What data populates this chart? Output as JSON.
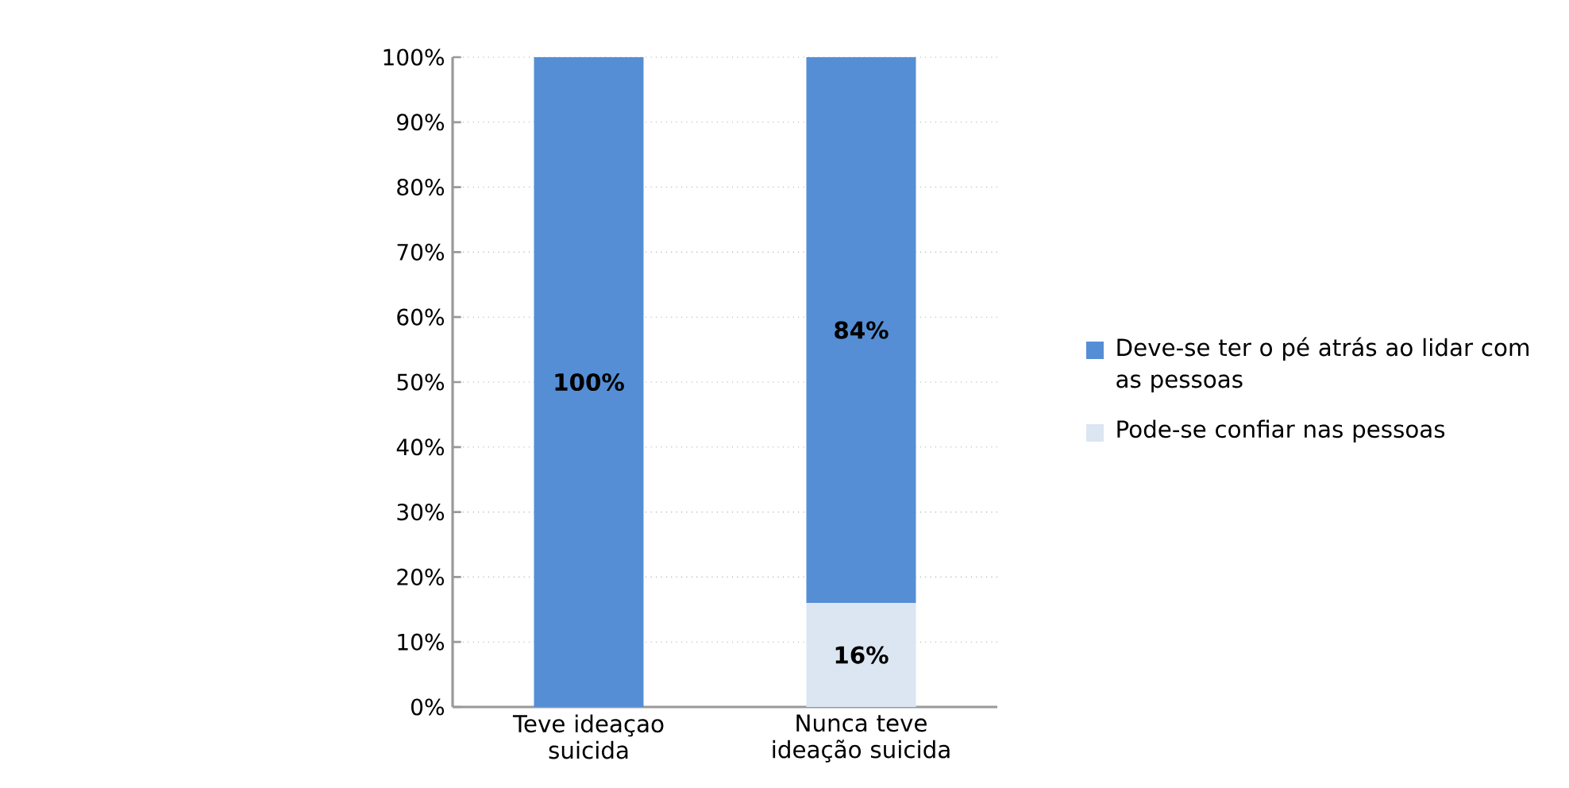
{
  "chart_data": {
    "type": "bar",
    "stacked": true,
    "categories": [
      "Teve ideaçao suicida",
      "Nunca teve ideação suicida"
    ],
    "series": [
      {
        "name": "Pode-se confiar nas pessoas",
        "color": "#dce6f2",
        "values": [
          0,
          16
        ],
        "value_labels": [
          null,
          "16%"
        ]
      },
      {
        "name": "Deve-se ter o pé atrás ao lidar com as pessoas",
        "color": "#558ed5",
        "values": [
          100,
          84
        ],
        "value_labels": [
          "100%",
          "84%"
        ]
      }
    ],
    "ylim": [
      0,
      100
    ],
    "yticks": [
      {
        "value": 0,
        "label": "0%"
      },
      {
        "value": 10,
        "label": "10%"
      },
      {
        "value": 20,
        "label": "20%"
      },
      {
        "value": 30,
        "label": "30%"
      },
      {
        "value": 40,
        "label": "40%"
      },
      {
        "value": 50,
        "label": "50%"
      },
      {
        "value": 60,
        "label": "60%"
      },
      {
        "value": 70,
        "label": "70%"
      },
      {
        "value": 80,
        "label": "80%"
      },
      {
        "value": 90,
        "label": "90%"
      },
      {
        "value": 100,
        "label": "100%"
      }
    ],
    "grid": "y",
    "legend": "right"
  }
}
